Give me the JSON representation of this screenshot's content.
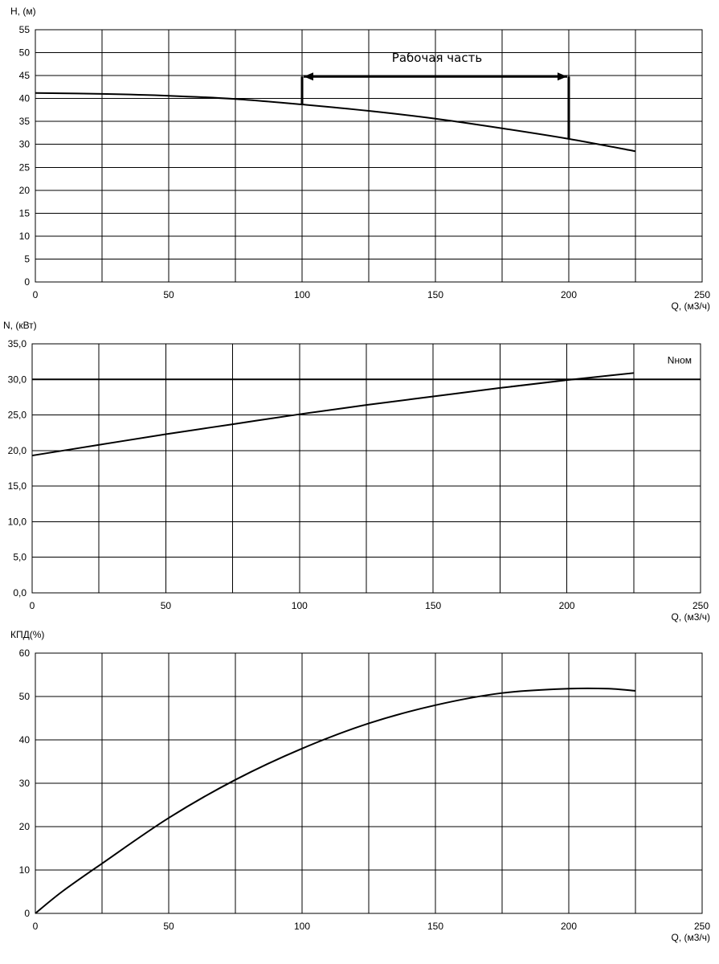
{
  "chart_data": [
    {
      "type": "line",
      "title": "",
      "ylabel": "H, (м)",
      "xlabel": "Q, (м3/ч)",
      "xlim": [
        0,
        250
      ],
      "ylim": [
        0,
        55
      ],
      "xticks": [
        0,
        50,
        100,
        150,
        200,
        250
      ],
      "xtick_labels": [
        "0",
        "50",
        "100",
        "150",
        "200",
        "250"
      ],
      "yticks": [
        0,
        5,
        10,
        15,
        20,
        25,
        30,
        35,
        40,
        45,
        50,
        55
      ],
      "ytick_labels": [
        "0",
        "5",
        "10",
        "15",
        "20",
        "25",
        "30",
        "35",
        "40",
        "45",
        "50",
        "55"
      ],
      "grid": true,
      "x_minor_step": 25,
      "series": [
        {
          "name": "",
          "x": [
            0,
            25,
            50,
            75,
            100,
            125,
            150,
            175,
            200,
            225
          ],
          "y": [
            41.2,
            41.0,
            40.6,
            39.9,
            38.7,
            37.3,
            35.6,
            33.5,
            31.2,
            28.5
          ]
        }
      ],
      "annotations": [
        {
          "text": "Рабочая часть",
          "type": "range-bracket",
          "x_start": 100,
          "x_end": 200,
          "y_level": 44.8,
          "start_drop_to": 38.7,
          "end_drop_to": 31.2,
          "text_y": 48.5
        }
      ]
    },
    {
      "type": "line",
      "title": "",
      "ylabel": "N, (кВт)",
      "xlabel": "Q, (м3/ч)",
      "xlim": [
        0,
        250
      ],
      "ylim": [
        0,
        35
      ],
      "xticks": [
        0,
        50,
        100,
        150,
        200,
        250
      ],
      "xtick_labels": [
        "0",
        "50",
        "100",
        "150",
        "200",
        "250"
      ],
      "yticks": [
        0,
        5,
        10,
        15,
        20,
        25,
        30,
        35
      ],
      "ytick_labels": [
        "0,0",
        "5,0",
        "10,0",
        "15,0",
        "20,0",
        "25,0",
        "30,0",
        "35,0"
      ],
      "grid": true,
      "x_minor_step": 25,
      "series": [
        {
          "name": "",
          "x": [
            0,
            25,
            50,
            75,
            100,
            125,
            150,
            175,
            200,
            225
          ],
          "y": [
            19.3,
            20.8,
            22.3,
            23.7,
            25.1,
            26.4,
            27.6,
            28.8,
            29.9,
            30.9
          ]
        }
      ],
      "reference_lines": [
        {
          "label": "Nном",
          "y": 30.0
        }
      ]
    },
    {
      "type": "line",
      "title": "",
      "ylabel": "КПД(%)",
      "xlabel": "Q, (м3/ч)",
      "xlim": [
        0,
        250
      ],
      "ylim": [
        0,
        60
      ],
      "xticks": [
        0,
        50,
        100,
        150,
        200,
        250
      ],
      "xtick_labels": [
        "0",
        "50",
        "100",
        "150",
        "200",
        "250"
      ],
      "yticks": [
        0,
        10,
        20,
        30,
        40,
        50,
        60
      ],
      "ytick_labels": [
        "0",
        "10",
        "20",
        "30",
        "40",
        "50",
        "60"
      ],
      "grid": true,
      "x_minor_step": 25,
      "series": [
        {
          "name": "",
          "x": [
            0,
            10,
            25,
            50,
            75,
            100,
            125,
            150,
            175,
            200,
            215,
            225
          ],
          "y": [
            0,
            5,
            11.5,
            22,
            30.8,
            38,
            43.8,
            48,
            50.8,
            51.8,
            51.8,
            51.3
          ]
        }
      ]
    }
  ]
}
